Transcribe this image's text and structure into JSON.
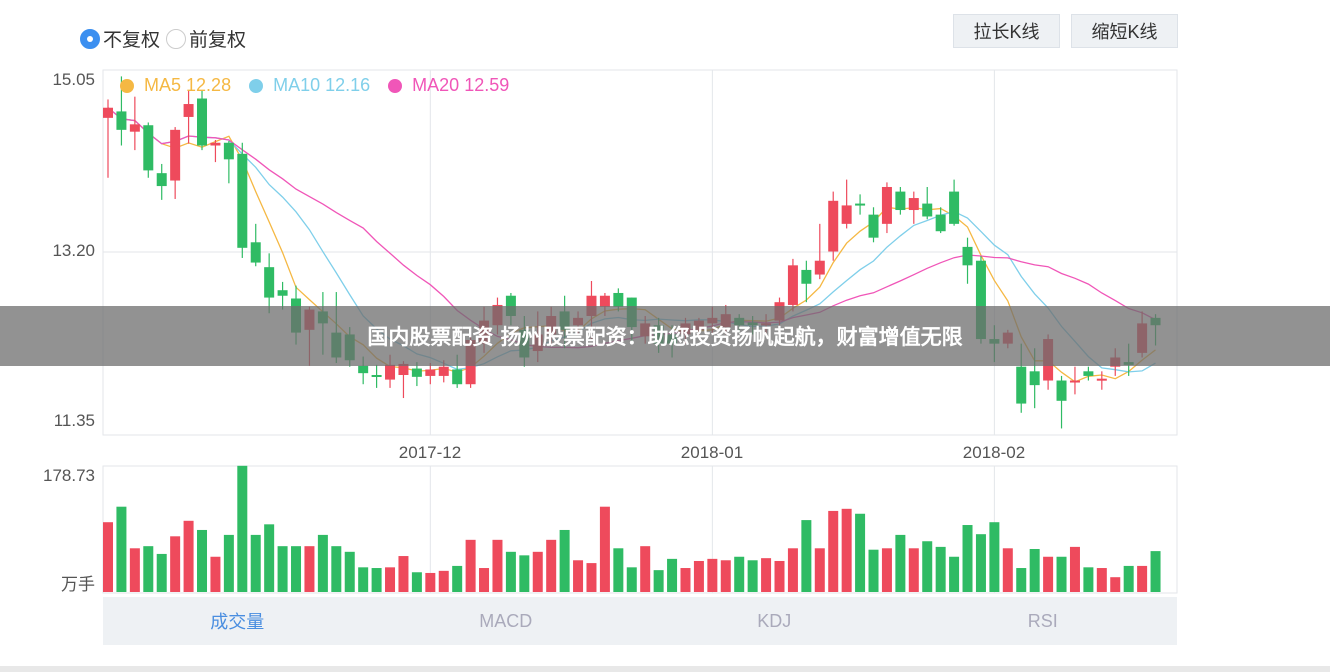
{
  "adjust": {
    "options": [
      {
        "label": "不复权",
        "checked": true
      },
      {
        "label": "前复权",
        "checked": false
      }
    ]
  },
  "buttons": {
    "lengthen": "拉长K线",
    "shorten": "缩短K线"
  },
  "legend": [
    {
      "name": "MA5",
      "value": "12.28",
      "color": "#f5b843"
    },
    {
      "name": "MA10",
      "value": "12.16",
      "color": "#7fcfea"
    },
    {
      "name": "MA20",
      "value": "12.59",
      "color": "#f056b8"
    }
  ],
  "colors": {
    "up": "#ee4a5c",
    "down": "#2fbb64",
    "grid": "#e3e6ea"
  },
  "volume_unit": "万手",
  "tabs": [
    {
      "label": "成交量",
      "active": true
    },
    {
      "label": "MACD",
      "active": false
    },
    {
      "label": "KDJ",
      "active": false
    },
    {
      "label": "RSI",
      "active": false
    }
  ],
  "banner": "国内股票配资 扬州股票配资：助您投资扬帆起航，财富增值无限",
  "chart_data": {
    "type": "candlestick",
    "y_ticks": [
      "15.05",
      "13.20",
      "11.35"
    ],
    "ylim": [
      11.35,
      15.05
    ],
    "x_ticks": [
      {
        "label": "2017-12",
        "index": 24
      },
      {
        "label": "2018-01",
        "index": 45
      },
      {
        "label": "2018-02",
        "index": 66
      }
    ],
    "ohlc": [
      [
        14.65,
        14.76,
        14.0,
        14.85
      ],
      [
        14.72,
        14.52,
        14.35,
        15.1
      ],
      [
        14.5,
        14.58,
        14.3,
        14.88
      ],
      [
        14.57,
        14.08,
        14.0,
        14.6
      ],
      [
        14.05,
        13.91,
        13.76,
        14.15
      ],
      [
        13.97,
        14.52,
        13.77,
        14.55
      ],
      [
        14.66,
        14.8,
        14.37,
        14.95
      ],
      [
        14.86,
        14.35,
        14.3,
        14.95
      ],
      [
        14.35,
        14.38,
        14.17,
        14.41
      ],
      [
        14.38,
        14.2,
        13.94,
        14.4
      ],
      [
        14.26,
        13.24,
        13.13,
        14.38
      ],
      [
        13.3,
        13.08,
        13.04,
        13.5
      ],
      [
        13.03,
        12.7,
        12.53,
        13.18
      ],
      [
        12.78,
        12.72,
        12.57,
        12.87
      ],
      [
        12.69,
        12.32,
        12.19,
        12.83
      ],
      [
        12.35,
        12.57,
        11.96,
        12.6
      ],
      [
        12.55,
        12.42,
        12.08,
        12.76
      ],
      [
        12.32,
        12.05,
        11.99,
        12.76
      ],
      [
        12.3,
        12.02,
        11.95,
        12.38
      ],
      [
        11.96,
        11.88,
        11.76,
        12.06
      ],
      [
        11.86,
        11.84,
        11.72,
        11.97
      ],
      [
        11.81,
        11.97,
        11.72,
        12.08
      ],
      [
        11.86,
        11.98,
        11.61,
        12.01
      ],
      [
        11.93,
        11.84,
        11.74,
        12.0
      ],
      [
        11.85,
        11.92,
        11.76,
        11.99
      ],
      [
        11.85,
        11.95,
        11.78,
        12.02
      ],
      [
        11.92,
        11.76,
        11.72,
        12.08
      ],
      [
        11.76,
        12.24,
        11.72,
        12.28
      ],
      [
        12.2,
        12.45,
        12.1,
        12.6
      ],
      [
        12.4,
        12.62,
        12.3,
        12.7
      ],
      [
        12.72,
        12.5,
        12.4,
        12.75
      ],
      [
        12.35,
        12.05,
        11.95,
        12.5
      ],
      [
        12.12,
        12.3,
        12.0,
        12.55
      ],
      [
        12.3,
        12.5,
        12.2,
        12.6
      ],
      [
        12.55,
        12.35,
        12.15,
        12.72
      ],
      [
        12.4,
        12.48,
        12.3,
        12.55
      ],
      [
        12.5,
        12.72,
        12.25,
        12.88
      ],
      [
        12.6,
        12.72,
        12.5,
        12.75
      ],
      [
        12.75,
        12.6,
        12.55,
        12.8
      ],
      [
        12.7,
        12.38,
        12.2,
        12.7
      ],
      [
        12.28,
        12.42,
        12.2,
        12.5
      ],
      [
        12.4,
        12.2,
        12.1,
        12.48
      ],
      [
        12.3,
        12.2,
        12.05,
        12.4
      ],
      [
        12.3,
        12.42,
        12.2,
        12.48
      ],
      [
        12.35,
        12.45,
        12.28,
        12.48
      ],
      [
        12.42,
        12.48,
        12.3,
        12.6
      ],
      [
        12.38,
        12.52,
        12.3,
        12.62
      ],
      [
        12.48,
        12.4,
        12.32,
        12.52
      ],
      [
        12.43,
        12.4,
        12.3,
        12.5
      ],
      [
        12.4,
        12.42,
        12.3,
        12.52
      ],
      [
        12.45,
        12.65,
        12.4,
        12.7
      ],
      [
        12.62,
        13.05,
        12.55,
        13.12
      ],
      [
        13.0,
        12.85,
        12.65,
        13.1
      ],
      [
        12.95,
        13.1,
        12.9,
        13.5
      ],
      [
        13.2,
        13.75,
        13.1,
        13.85
      ],
      [
        13.5,
        13.7,
        13.45,
        13.98
      ],
      [
        13.72,
        13.7,
        13.6,
        13.82
      ],
      [
        13.6,
        13.35,
        13.3,
        13.68
      ],
      [
        13.5,
        13.9,
        13.4,
        13.95
      ],
      [
        13.85,
        13.65,
        13.6,
        13.9
      ],
      [
        13.65,
        13.78,
        13.5,
        13.85
      ],
      [
        13.72,
        13.58,
        13.55,
        13.9
      ],
      [
        13.6,
        13.42,
        13.4,
        13.68
      ],
      [
        13.85,
        13.5,
        13.48,
        13.98
      ],
      [
        13.25,
        13.05,
        12.85,
        13.35
      ],
      [
        13.1,
        12.25,
        12.2,
        13.15
      ],
      [
        12.25,
        12.2,
        12.0,
        12.4
      ],
      [
        12.2,
        12.32,
        12.15,
        12.35
      ],
      [
        11.95,
        11.55,
        11.45,
        12.2
      ],
      [
        11.9,
        11.75,
        11.5,
        12.15
      ],
      [
        11.8,
        12.25,
        11.7,
        12.3
      ],
      [
        11.8,
        11.58,
        11.28,
        11.85
      ],
      [
        11.78,
        11.8,
        11.65,
        11.95
      ],
      [
        11.9,
        11.85,
        11.8,
        11.95
      ],
      [
        11.8,
        11.82,
        11.7,
        11.9
      ],
      [
        11.95,
        12.05,
        11.85,
        12.15
      ],
      [
        12.0,
        11.97,
        11.85,
        12.2
      ],
      [
        12.1,
        12.42,
        12.05,
        12.55
      ],
      [
        12.48,
        12.4,
        12.18,
        12.52
      ]
    ],
    "volume": {
      "max_label": "178.73",
      "max": 178.73,
      "values": [
        99,
        121,
        62,
        65,
        54,
        79,
        101,
        88,
        50,
        81,
        179,
        81,
        96,
        65,
        65,
        65,
        81,
        65,
        57,
        35,
        34,
        35,
        51,
        28,
        27,
        30,
        37,
        74,
        34,
        74,
        57,
        52,
        57,
        74,
        88,
        45,
        41,
        121,
        62,
        35,
        65,
        31,
        47,
        34,
        44,
        47,
        45,
        50,
        45,
        48,
        44,
        62,
        102,
        62,
        115,
        118,
        111,
        60,
        62,
        81,
        62,
        72,
        64,
        50,
        95,
        82,
        99,
        62,
        34,
        61,
        50,
        50,
        64,
        35,
        34,
        21,
        37,
        37,
        58
      ]
    }
  }
}
